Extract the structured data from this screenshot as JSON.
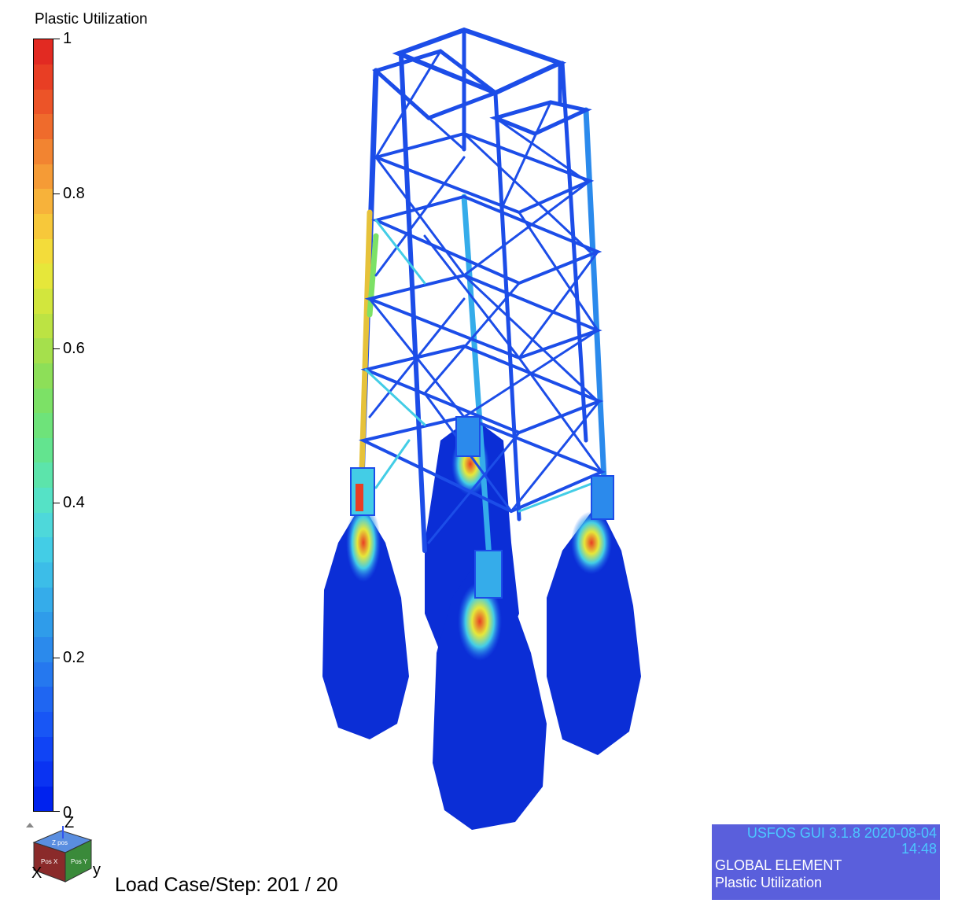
{
  "legend": {
    "title": "Plastic Utilization",
    "ticks": [
      "1",
      "0.8",
      "0.6",
      "0.4",
      "0.2",
      "0"
    ],
    "tick_values": [
      1,
      0.8,
      0.6,
      0.4,
      0.2,
      0
    ],
    "colors": [
      "#0022ee",
      "#0a33f2",
      "#1044f5",
      "#1856f5",
      "#1f66f2",
      "#2578ef",
      "#2b8aec",
      "#2f9cea",
      "#35acea",
      "#3cbde8",
      "#43cde6",
      "#4ed8da",
      "#55e2c6",
      "#5ce4ab",
      "#63e48f",
      "#6ee37a",
      "#7ce166",
      "#8ddf58",
      "#a5e04c",
      "#bce343",
      "#d2e63d",
      "#e6e73a",
      "#f3dc3a",
      "#f7c83a",
      "#f7b23a",
      "#f59b36",
      "#f28431",
      "#ef6b2c",
      "#ec5428",
      "#e83e24",
      "#e22a22"
    ]
  },
  "viewport": {
    "load_case_label": "Load Case/Step: 201 / 20"
  },
  "axes_triad": {
    "z_label": "Z",
    "x_label": "X",
    "y_label": "y",
    "face_top": "Z pos",
    "face_left": "Pos X",
    "face_right": "Pos Y"
  },
  "info_box": {
    "version": "USFOS GUI 3.1.8 2020-08-04 14:48",
    "line2": "GLOBAL ELEMENT",
    "line3": "Plastic Utilization",
    "bg_color": "#5a5fdc"
  }
}
